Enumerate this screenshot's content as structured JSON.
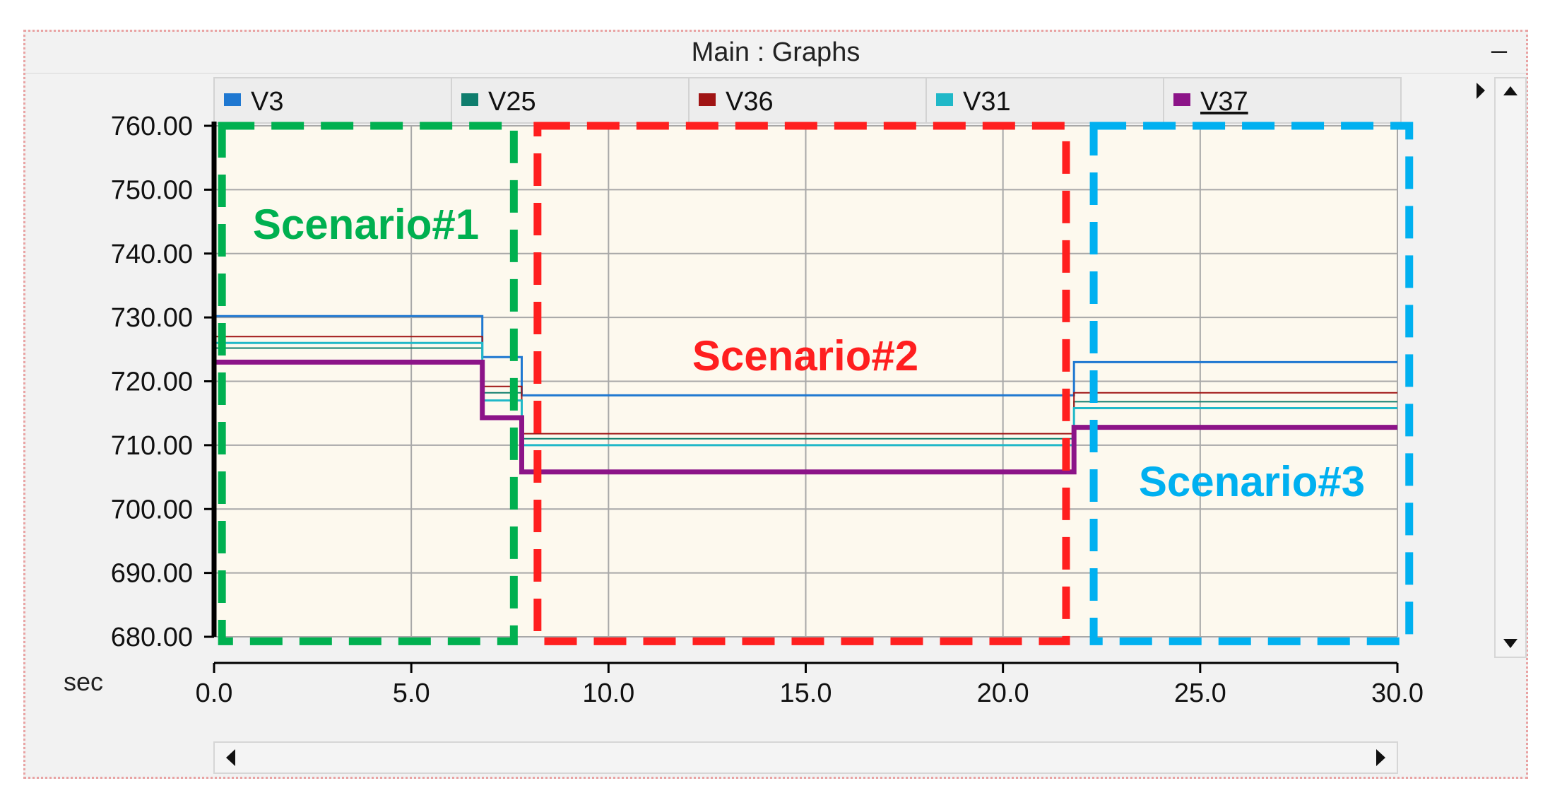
{
  "window": {
    "title": "Main : Graphs",
    "minimize_label": "–"
  },
  "scrollbar": {
    "up_icon": "triangle-up-icon",
    "down_icon": "triangle-down-icon",
    "left_icon": "triangle-left-icon",
    "right_icon": "triangle-right-icon",
    "tab_overflow_icon": "triangle-right-icon"
  },
  "chart_data": {
    "type": "line",
    "title": "",
    "xlabel": "sec",
    "ylabel": "",
    "xlim": [
      0,
      30
    ],
    "ylim": [
      680,
      760
    ],
    "xticks": [
      "0.0",
      "5.0",
      "10.0",
      "15.0",
      "20.0",
      "25.0",
      "30.0"
    ],
    "xtick_values": [
      0,
      5,
      10,
      15,
      20,
      25,
      30
    ],
    "yticks": [
      "760.00",
      "750.00",
      "740.00",
      "730.00",
      "720.00",
      "710.00",
      "700.00",
      "690.00",
      "680.00"
    ],
    "ytick_values": [
      760,
      750,
      740,
      730,
      720,
      710,
      700,
      690,
      680
    ],
    "grid": true,
    "legend_position": "top",
    "series": [
      {
        "name": "V3",
        "color": "#1f78d1",
        "width": 3,
        "points": [
          [
            0,
            730.2
          ],
          [
            6.8,
            730.2
          ],
          [
            6.8,
            723.8
          ],
          [
            7.8,
            723.8
          ],
          [
            7.8,
            717.8
          ],
          [
            21.8,
            717.8
          ],
          [
            21.8,
            723.0
          ],
          [
            30,
            723.0
          ]
        ]
      },
      {
        "name": "V25",
        "color": "#0f7d6d",
        "width": 2,
        "points": [
          [
            0,
            725.2
          ],
          [
            6.8,
            725.2
          ],
          [
            6.8,
            718.2
          ],
          [
            7.8,
            718.2
          ],
          [
            7.8,
            711.0
          ],
          [
            21.8,
            711.0
          ],
          [
            21.8,
            716.8
          ],
          [
            30,
            716.8
          ]
        ]
      },
      {
        "name": "V36",
        "color": "#a01414",
        "width": 2,
        "points": [
          [
            0,
            727.0
          ],
          [
            6.8,
            727.0
          ],
          [
            6.8,
            719.2
          ],
          [
            7.8,
            719.2
          ],
          [
            7.8,
            711.8
          ],
          [
            21.8,
            711.8
          ],
          [
            21.8,
            718.2
          ],
          [
            30,
            718.2
          ]
        ]
      },
      {
        "name": "V31",
        "color": "#20b8c8",
        "width": 3,
        "points": [
          [
            0,
            726.0
          ],
          [
            6.8,
            726.0
          ],
          [
            6.8,
            717.0
          ],
          [
            7.8,
            717.0
          ],
          [
            7.8,
            710.0
          ],
          [
            21.8,
            710.0
          ],
          [
            21.8,
            715.8
          ],
          [
            30,
            715.8
          ]
        ]
      },
      {
        "name": "V37",
        "color": "#8c1488",
        "width": 7,
        "points": [
          [
            0,
            723.0
          ],
          [
            6.8,
            723.0
          ],
          [
            6.8,
            714.3
          ],
          [
            7.8,
            714.3
          ],
          [
            7.8,
            705.8
          ],
          [
            21.8,
            705.8
          ],
          [
            21.8,
            712.8
          ],
          [
            30,
            712.8
          ]
        ]
      }
    ],
    "annotations": [
      {
        "label": "Scenario#1",
        "color": "#00b050",
        "x_range": [
          0.2,
          7.6
        ],
        "y_range": [
          679.3,
          760
        ]
      },
      {
        "label": "Scenario#2",
        "color": "#ff1f1f",
        "x_range": [
          8.2,
          21.6
        ],
        "y_range": [
          679.3,
          760
        ]
      },
      {
        "label": "Scenario#3",
        "color": "#00b0f0",
        "x_range": [
          22.3,
          30.3
        ],
        "y_range": [
          679.3,
          760
        ]
      }
    ]
  }
}
